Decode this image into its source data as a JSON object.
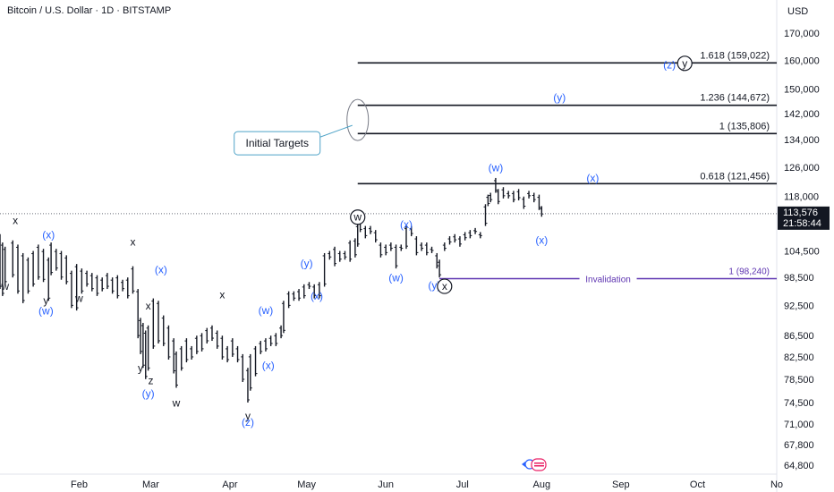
{
  "header": {
    "title": "Bitcoin / U.S. Dollar · 1D · BITSTAMP",
    "currency": "USD"
  },
  "chart_data": {
    "type": "candlestick",
    "symbol": "Bitcoin / U.S. Dollar",
    "interval": "1D",
    "exchange": "BITSTAMP",
    "y_scale": "log",
    "ylim": [
      63500,
      183000
    ],
    "price_ticks": [
      "170,000",
      "160,000",
      "150,000",
      "142,000",
      "134,000",
      "126,000",
      "118,000",
      "104,500",
      "98,500",
      "92,500",
      "86,500",
      "82,500",
      "78,500",
      "74,500",
      "71,000",
      "67,800",
      "64,800"
    ],
    "x_ticks": [
      "Feb",
      "Mar",
      "Apr",
      "May",
      "Jun",
      "Jul",
      "Aug",
      "Sep",
      "Oct",
      "No"
    ],
    "x_start": "2025-01-01",
    "x_end": "2025-11-01",
    "last_price": {
      "value": "113,576",
      "countdown": "21:58:44",
      "date": "2025-08-01"
    },
    "fib_levels": [
      {
        "label": "1.618 (159,022)",
        "price": 159022,
        "from": "2025-05-21",
        "to": "2025-11-01"
      },
      {
        "label": "1.236 (144,672)",
        "price": 144672,
        "from": "2025-05-21",
        "to": "2025-11-01"
      },
      {
        "label": "1 (135,806)",
        "price": 135806,
        "from": "2025-05-21",
        "to": "2025-11-01"
      },
      {
        "label": "0.618 (121,456)",
        "price": 121456,
        "from": "2025-05-21",
        "to": "2025-11-01"
      }
    ],
    "invalidation": {
      "label": "Invalidation",
      "level_label": "1 (98,240)",
      "price": 98240,
      "from": "2025-06-22",
      "to": "2025-11-01"
    },
    "callout": {
      "text": "Initial Targets",
      "date": "2025-05-21",
      "price": 140000
    },
    "wave_labels": [
      {
        "t": "x",
        "date": "2025-01-07",
        "price": 111000,
        "color": "black"
      },
      {
        "t": "(x)",
        "date": "2025-01-20",
        "price": 107500,
        "color": "blue"
      },
      {
        "t": "w",
        "date": "2025-01-03",
        "price": 95800,
        "color": "black"
      },
      {
        "t": "y",
        "date": "2025-01-19",
        "price": 92800,
        "color": "black"
      },
      {
        "t": "(w)",
        "date": "2025-01-19",
        "price": 90700,
        "color": "blue"
      },
      {
        "t": "w",
        "date": "2025-02-01",
        "price": 93300,
        "color": "black"
      },
      {
        "t": "x",
        "date": "2025-02-22",
        "price": 105800,
        "color": "black"
      },
      {
        "t": "(x)",
        "date": "2025-03-05",
        "price": 99400,
        "color": "blue"
      },
      {
        "t": "x",
        "date": "2025-02-28",
        "price": 91700,
        "color": "black"
      },
      {
        "t": "y",
        "date": "2025-02-25",
        "price": 79800,
        "color": "black"
      },
      {
        "t": "z",
        "date": "2025-03-01",
        "price": 77600,
        "color": "black"
      },
      {
        "t": "(y)",
        "date": "2025-02-28",
        "price": 75400,
        "color": "blue"
      },
      {
        "t": "w",
        "date": "2025-03-11",
        "price": 73800,
        "color": "black"
      },
      {
        "t": "x",
        "date": "2025-03-29",
        "price": 94000,
        "color": "black"
      },
      {
        "t": "(w)",
        "date": "2025-04-15",
        "price": 90800,
        "color": "blue"
      },
      {
        "t": "(x)",
        "date": "2025-04-16",
        "price": 80300,
        "color": "blue"
      },
      {
        "t": "y",
        "date": "2025-04-08",
        "price": 71700,
        "color": "black"
      },
      {
        "t": "(z)",
        "date": "2025-04-08",
        "price": 70700,
        "color": "blue"
      },
      {
        "t": "(y)",
        "date": "2025-05-01",
        "price": 100800,
        "color": "blue"
      },
      {
        "t": "(x)",
        "date": "2025-05-05",
        "price": 93700,
        "color": "blue"
      },
      {
        "t": "w",
        "date": "2025-05-21",
        "price": 111800,
        "color": "black-circle"
      },
      {
        "t": "(x)",
        "date": "2025-06-09",
        "price": 110000,
        "color": "blue"
      },
      {
        "t": "(w)",
        "date": "2025-06-05",
        "price": 97700,
        "color": "blue"
      },
      {
        "t": "(y)",
        "date": "2025-06-20",
        "price": 96000,
        "color": "blue"
      },
      {
        "t": "x",
        "date": "2025-06-24",
        "price": 95800,
        "color": "black-circle"
      },
      {
        "t": "(w)",
        "date": "2025-07-14",
        "price": 124800,
        "color": "blue"
      },
      {
        "t": "(x)",
        "date": "2025-08-01",
        "price": 106200,
        "color": "blue"
      },
      {
        "t": "(x)",
        "date": "2025-08-21",
        "price": 122000,
        "color": "blue"
      },
      {
        "t": "(y)",
        "date": "2025-08-08",
        "price": 146100,
        "color": "blue"
      },
      {
        "t": "(z)",
        "date": "2025-09-20",
        "price": 157100,
        "color": "blue"
      },
      {
        "t": "y",
        "date": "2025-09-26",
        "price": 157600,
        "color": "black-circle"
      }
    ],
    "candles": [
      [
        "2025-01-01",
        96000,
        108500
      ],
      [
        "2025-01-02",
        94500,
        106500
      ],
      [
        "2025-01-03",
        97000,
        105500
      ],
      [
        "2025-01-06",
        98500,
        107000
      ],
      [
        "2025-01-08",
        95000,
        106000
      ],
      [
        "2025-01-10",
        93000,
        104000
      ],
      [
        "2025-01-12",
        95000,
        103000
      ],
      [
        "2025-01-14",
        96500,
        104500
      ],
      [
        "2025-01-16",
        98000,
        106000
      ],
      [
        "2025-01-18",
        97500,
        105000
      ],
      [
        "2025-01-20",
        93500,
        103000
      ],
      [
        "2025-01-21",
        99000,
        106500
      ],
      [
        "2025-01-23",
        100000,
        105000
      ],
      [
        "2025-01-25",
        98000,
        104500
      ],
      [
        "2025-01-27",
        97000,
        103500
      ],
      [
        "2025-01-29",
        92000,
        100000
      ],
      [
        "2025-01-31",
        91500,
        101500
      ],
      [
        "2025-02-02",
        95000,
        100500
      ],
      [
        "2025-02-04",
        96500,
        100000
      ],
      [
        "2025-02-06",
        95500,
        99500
      ],
      [
        "2025-02-08",
        94500,
        99000
      ],
      [
        "2025-02-10",
        95500,
        98500
      ],
      [
        "2025-02-12",
        96000,
        99500
      ],
      [
        "2025-02-14",
        95000,
        98500
      ],
      [
        "2025-02-16",
        94000,
        99000
      ],
      [
        "2025-02-18",
        95500,
        98000
      ],
      [
        "2025-02-20",
        94000,
        98500
      ],
      [
        "2025-02-22",
        95000,
        101000
      ],
      [
        "2025-02-24",
        86000,
        96000
      ],
      [
        "2025-02-25",
        83000,
        90000
      ],
      [
        "2025-02-26",
        80500,
        89000
      ],
      [
        "2025-02-27",
        78500,
        87500
      ],
      [
        "2025-02-28",
        80000,
        88500
      ],
      [
        "2025-03-02",
        84000,
        94000
      ],
      [
        "2025-03-04",
        85000,
        93500
      ],
      [
        "2025-03-06",
        84500,
        90500
      ],
      [
        "2025-03-08",
        82000,
        88500
      ],
      [
        "2025-03-10",
        79500,
        86000
      ],
      [
        "2025-03-11",
        77000,
        83500
      ],
      [
        "2025-03-13",
        80000,
        84500
      ],
      [
        "2025-03-15",
        81500,
        86000
      ],
      [
        "2025-03-17",
        82000,
        84500
      ],
      [
        "2025-03-19",
        83000,
        86500
      ],
      [
        "2025-03-21",
        83500,
        87000
      ],
      [
        "2025-03-23",
        85000,
        88000
      ],
      [
        "2025-03-25",
        85500,
        88500
      ],
      [
        "2025-03-27",
        84000,
        87500
      ],
      [
        "2025-03-29",
        82000,
        86500
      ],
      [
        "2025-03-31",
        81500,
        84500
      ],
      [
        "2025-04-02",
        82500,
        86000
      ],
      [
        "2025-04-04",
        81500,
        84500
      ],
      [
        "2025-04-06",
        78000,
        83000
      ],
      [
        "2025-04-08",
        74500,
        80500
      ],
      [
        "2025-04-09",
        76500,
        83000
      ],
      [
        "2025-04-11",
        79000,
        84500
      ],
      [
        "2025-04-13",
        83000,
        85500
      ],
      [
        "2025-04-15",
        83500,
        86000
      ],
      [
        "2025-04-17",
        84500,
        86500
      ],
      [
        "2025-04-19",
        84500,
        87000
      ],
      [
        "2025-04-21",
        86000,
        88500
      ],
      [
        "2025-04-22",
        87000,
        93500
      ],
      [
        "2025-04-24",
        92000,
        95500
      ],
      [
        "2025-04-26",
        93500,
        95500
      ],
      [
        "2025-04-28",
        93500,
        96000
      ],
      [
        "2025-04-30",
        94000,
        97000
      ],
      [
        "2025-05-02",
        96000,
        97500
      ],
      [
        "2025-05-04",
        94000,
        97000
      ],
      [
        "2025-05-06",
        94000,
        97500
      ],
      [
        "2025-05-08",
        96500,
        104000
      ],
      [
        "2025-05-10",
        102500,
        104500
      ],
      [
        "2025-05-12",
        101000,
        105500
      ],
      [
        "2025-05-14",
        102000,
        104500
      ],
      [
        "2025-05-16",
        102500,
        104500
      ],
      [
        "2025-05-18",
        102000,
        107000
      ],
      [
        "2025-05-20",
        103000,
        107500
      ],
      [
        "2025-05-21",
        105500,
        111000
      ],
      [
        "2025-05-22",
        109000,
        112000
      ],
      [
        "2025-05-24",
        107500,
        110500
      ],
      [
        "2025-05-26",
        108500,
        110500
      ],
      [
        "2025-05-28",
        106500,
        109500
      ],
      [
        "2025-05-30",
        103000,
        106500
      ],
      [
        "2025-06-01",
        103500,
        106000
      ],
      [
        "2025-06-03",
        104500,
        106500
      ],
      [
        "2025-06-05",
        100500,
        106000
      ],
      [
        "2025-06-07",
        104500,
        106000
      ],
      [
        "2025-06-09",
        105000,
        110500
      ],
      [
        "2025-06-11",
        108000,
        110500
      ],
      [
        "2025-06-13",
        103500,
        108000
      ],
      [
        "2025-06-15",
        104500,
        106500
      ],
      [
        "2025-06-17",
        103500,
        106500
      ],
      [
        "2025-06-19",
        104000,
        105500
      ],
      [
        "2025-06-21",
        100500,
        104000
      ],
      [
        "2025-06-22",
        98500,
        102500
      ],
      [
        "2025-06-24",
        104500,
        106500
      ],
      [
        "2025-06-26",
        106000,
        108000
      ],
      [
        "2025-06-28",
        106500,
        108500
      ],
      [
        "2025-06-30",
        105500,
        108000
      ],
      [
        "2025-07-02",
        107000,
        109000
      ],
      [
        "2025-07-04",
        107500,
        109500
      ],
      [
        "2025-07-06",
        108500,
        110000
      ],
      [
        "2025-07-08",
        107500,
        109000
      ],
      [
        "2025-07-10",
        110500,
        116000
      ],
      [
        "2025-07-11",
        115500,
        118500
      ],
      [
        "2025-07-12",
        116500,
        119000
      ],
      [
        "2025-07-14",
        119000,
        123000
      ],
      [
        "2025-07-15",
        116000,
        120000
      ],
      [
        "2025-07-17",
        117500,
        120500
      ],
      [
        "2025-07-19",
        117500,
        119500
      ],
      [
        "2025-07-21",
        116500,
        119500
      ],
      [
        "2025-07-23",
        117000,
        120000
      ],
      [
        "2025-07-25",
        114800,
        118000
      ],
      [
        "2025-07-27",
        117500,
        119500
      ],
      [
        "2025-07-29",
        116500,
        119000
      ],
      [
        "2025-07-31",
        114500,
        118500
      ],
      [
        "2025-08-01",
        112800,
        115500
      ]
    ]
  }
}
